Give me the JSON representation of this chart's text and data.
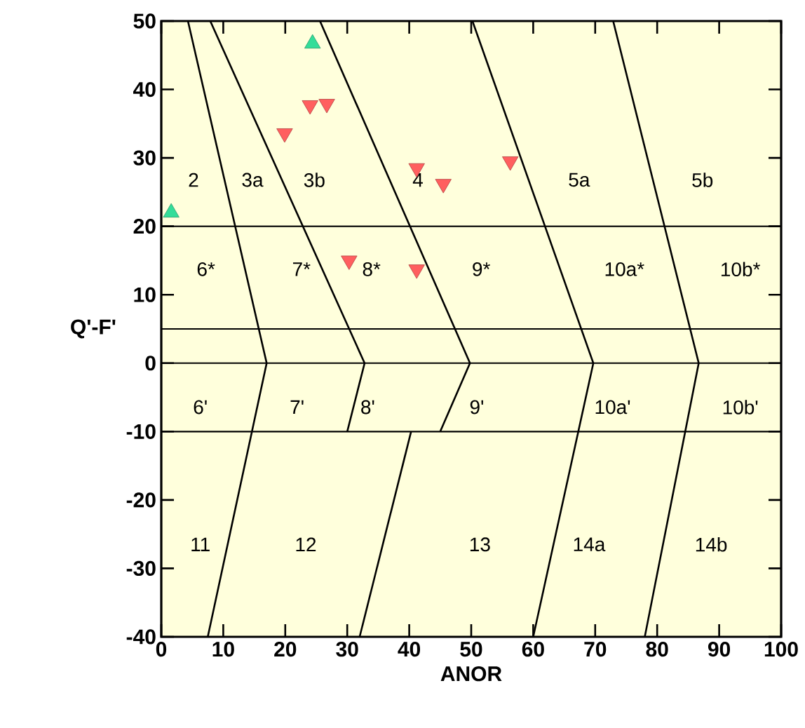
{
  "chart_data": {
    "type": "scatter",
    "xlabel": "ANOR",
    "ylabel": "Q'-F'",
    "xlim": [
      0,
      100
    ],
    "ylim": [
      -40,
      50
    ],
    "xticks": [
      0,
      10,
      20,
      30,
      40,
      50,
      60,
      70,
      80,
      90,
      100
    ],
    "yticks": [
      -40,
      -30,
      -20,
      -10,
      0,
      10,
      20,
      30,
      40,
      50
    ],
    "series": [
      {
        "type": "line",
        "color": "#000000",
        "marker": "none",
        "x": [
          4.3,
          17,
          7.5
        ],
        "values": [
          50,
          0,
          -40
        ]
      },
      {
        "type": "line",
        "color": "#000000",
        "marker": "none",
        "x": [
          7.9,
          32.8,
          30
        ],
        "values": [
          50,
          0,
          -10
        ]
      },
      {
        "type": "line",
        "color": "#000000",
        "marker": "none",
        "x": [
          25.6,
          49.8,
          45
        ],
        "values": [
          50,
          0,
          -10
        ]
      },
      {
        "type": "line",
        "color": "#000000",
        "marker": "none",
        "x": [
          40.3,
          32
        ],
        "values": [
          -10,
          -40
        ]
      },
      {
        "type": "line",
        "color": "#000000",
        "marker": "none",
        "x": [
          50.2,
          69.7,
          60
        ],
        "values": [
          50,
          0,
          -40
        ]
      },
      {
        "type": "line",
        "color": "#000000",
        "marker": "none",
        "x": [
          72.9,
          86.7,
          78
        ],
        "values": [
          50,
          0,
          -40
        ]
      },
      {
        "color": "#ff5f5f",
        "marker": "triangle-down",
        "x": [
          19.9,
          24,
          26.7,
          41.2,
          45.5,
          56.3,
          30.3,
          41.2
        ],
        "values": [
          33.6,
          37.7,
          37.9,
          28.5,
          26.2,
          29.5,
          15,
          13.7
        ]
      },
      {
        "color": "#33dd99",
        "marker": "triangle",
        "x": [
          24.4,
          1.6
        ],
        "values": [
          46.7,
          22
        ]
      }
    ],
    "ref_lines": [
      {
        "axis": "y",
        "value": 20,
        "color": "#000000"
      },
      {
        "axis": "y",
        "value": 5,
        "color": "#000000"
      },
      {
        "axis": "y",
        "value": 0,
        "color": "#000000"
      },
      {
        "axis": "y",
        "value": -10,
        "color": "#000000"
      }
    ],
    "annotations": [
      "2",
      "3a",
      "3b",
      "4",
      "5a",
      "5b",
      "6*",
      "7*",
      "8*",
      "9*",
      "10a*",
      "10b*",
      "6'",
      "7'",
      "8'",
      "9'",
      "10a'",
      "10b'",
      "11",
      "12",
      "13",
      "14a",
      "14b"
    ]
  }
}
